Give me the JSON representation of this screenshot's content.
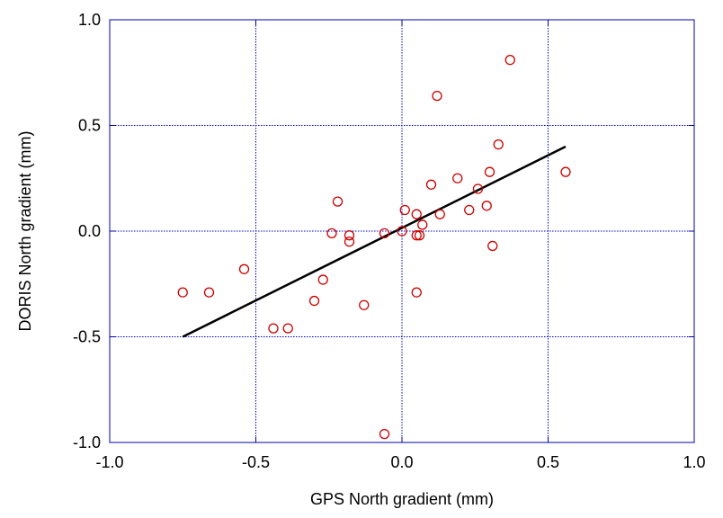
{
  "chart_data": {
    "type": "scatter",
    "xlabel": "GPS North gradient (mm)",
    "ylabel": "DORIS North gradient (mm)",
    "xlim": [
      -1.0,
      1.0
    ],
    "ylim": [
      -1.0,
      1.0
    ],
    "xticks": [
      "-1.0",
      "-0.5",
      "0.0",
      "0.5",
      "1.0"
    ],
    "yticks": [
      "-1.0",
      "-0.5",
      "0.0",
      "0.5",
      "1.0"
    ],
    "grid": true,
    "series": [
      {
        "type": "scatter",
        "marker": "open-circle",
        "color": "#cc0000",
        "points": [
          [
            -0.75,
            -0.29
          ],
          [
            -0.66,
            -0.29
          ],
          [
            -0.54,
            -0.18
          ],
          [
            -0.44,
            -0.46
          ],
          [
            -0.39,
            -0.46
          ],
          [
            -0.3,
            -0.33
          ],
          [
            -0.27,
            -0.23
          ],
          [
            -0.24,
            -0.01
          ],
          [
            -0.22,
            0.14
          ],
          [
            -0.18,
            -0.05
          ],
          [
            -0.18,
            -0.02
          ],
          [
            -0.13,
            -0.35
          ],
          [
            -0.06,
            -0.01
          ],
          [
            -0.06,
            -0.96
          ],
          [
            0.0,
            0.0
          ],
          [
            0.01,
            0.1
          ],
          [
            0.05,
            0.08
          ],
          [
            0.05,
            -0.02
          ],
          [
            0.06,
            -0.02
          ],
          [
            0.07,
            0.03
          ],
          [
            0.05,
            -0.29
          ],
          [
            0.1,
            0.22
          ],
          [
            0.12,
            0.64
          ],
          [
            0.13,
            0.08
          ],
          [
            0.19,
            0.25
          ],
          [
            0.23,
            0.1
          ],
          [
            0.26,
            0.2
          ],
          [
            0.29,
            0.12
          ],
          [
            0.3,
            0.28
          ],
          [
            0.31,
            -0.07
          ],
          [
            0.33,
            0.41
          ],
          [
            0.37,
            0.81
          ],
          [
            0.56,
            0.28
          ]
        ]
      },
      {
        "type": "line",
        "color": "#000000",
        "x": [
          -0.75,
          0.56
        ],
        "y": [
          -0.5,
          0.4
        ]
      }
    ]
  }
}
